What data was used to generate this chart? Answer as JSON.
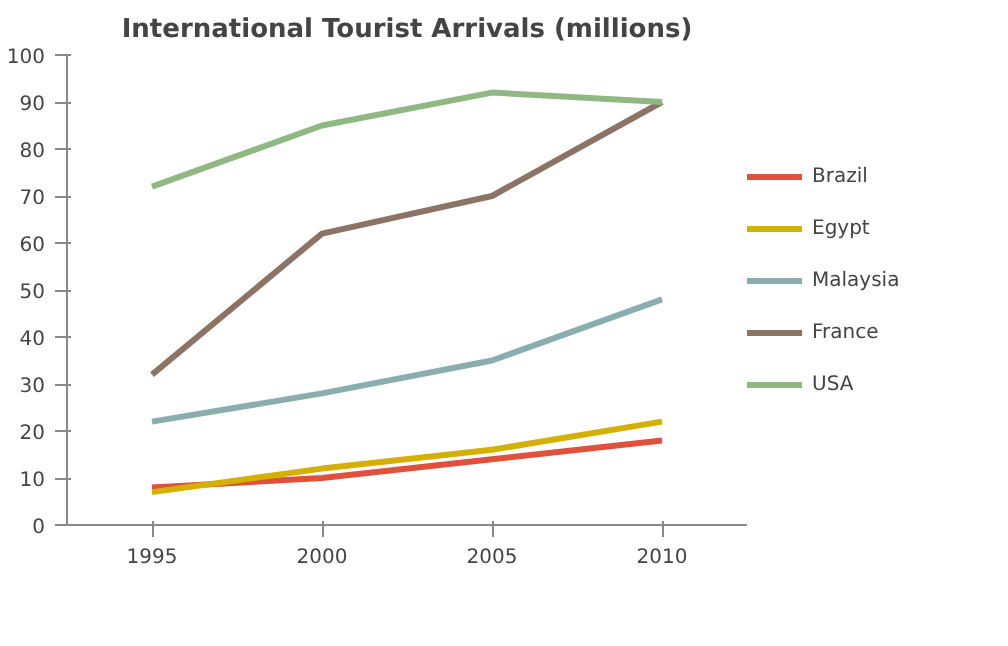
{
  "chart_data": {
    "type": "line",
    "title": "International Tourist Arrivals (millions)",
    "categories": [
      "1995",
      "2000",
      "2005",
      "2010"
    ],
    "series": [
      {
        "name": "Brazil",
        "color": "#e0503c",
        "values": [
          8,
          10,
          14,
          18
        ]
      },
      {
        "name": "Egypt",
        "color": "#d4b000",
        "values": [
          7,
          12,
          16,
          22
        ]
      },
      {
        "name": "Malaysia",
        "color": "#8aaeb0",
        "values": [
          22,
          28,
          35,
          48
        ]
      },
      {
        "name": "France",
        "color": "#8b7366",
        "values": [
          32,
          62,
          70,
          90
        ]
      },
      {
        "name": "USA",
        "color": "#8fb882",
        "values": [
          72,
          85,
          92,
          90
        ]
      }
    ],
    "ylim": [
      0,
      100
    ],
    "yticks": [
      0,
      10,
      20,
      30,
      40,
      50,
      60,
      70,
      80,
      90,
      100
    ],
    "grid": false,
    "legend": "right",
    "marker": "none",
    "line_style": "solid"
  }
}
